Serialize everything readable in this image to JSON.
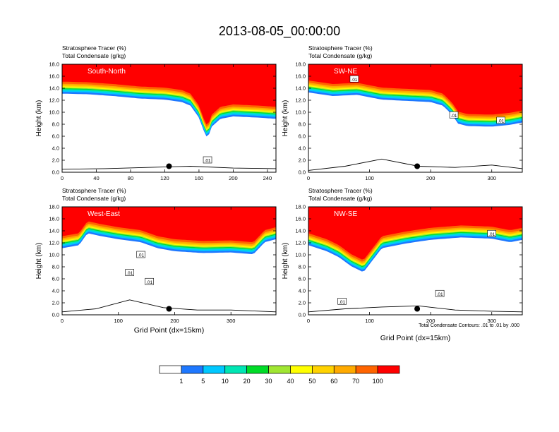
{
  "figure": {
    "title": "2013-08-05_00:00:00",
    "footnote": "Total Condensate Contours: .01 to .01 by .000"
  },
  "palette": [
    "#ffffff",
    "#1e78ff",
    "#00c8ff",
    "#00e6b4",
    "#00dc28",
    "#a0e632",
    "#ffff00",
    "#ffd200",
    "#ffaa00",
    "#ff6400",
    "#ff0000"
  ],
  "colorbar": {
    "labels": [
      "1",
      "5",
      "10",
      "20",
      "30",
      "40",
      "50",
      "60",
      "70",
      "100"
    ]
  },
  "chart_data": [
    {
      "type": "heatmap",
      "id": "sn",
      "label": "South-North",
      "field_label_1": "Stratosphere Tracer   (%)",
      "field_label_2": "Total Condensate   (g/kg)",
      "ylabel": "Height (km)",
      "xlabel": "",
      "xlim": [
        0,
        250
      ],
      "ylim": [
        0,
        18
      ],
      "xticks": [
        0,
        40,
        80,
        120,
        160,
        200,
        240
      ],
      "yticks": [
        "0.0",
        "2.0",
        "4.0",
        "6.0",
        "8.0",
        "10.0",
        "12.0",
        "14.0",
        "16.0",
        "18.0"
      ],
      "front_x": [
        0,
        30,
        60,
        90,
        120,
        140,
        150,
        160,
        165,
        170,
        175,
        185,
        200,
        230,
        250
      ],
      "front_y": [
        14.0,
        13.9,
        13.6,
        13.2,
        13.0,
        12.6,
        12.0,
        10.0,
        8.0,
        6.5,
        8.5,
        9.8,
        10.2,
        10.0,
        9.8
      ],
      "ground_x": [
        0,
        50,
        100,
        150,
        200,
        250
      ],
      "ground_y": [
        0.5,
        0.6,
        0.8,
        1.0,
        0.7,
        0.6
      ],
      "marker": [
        125,
        1.0
      ],
      "contour_labels": [
        {
          "text": ".01",
          "x": 170,
          "y": 2.0
        }
      ]
    },
    {
      "type": "heatmap",
      "id": "swne",
      "label": "SW-NE",
      "field_label_1": "Stratosphere Tracer   (%)",
      "field_label_2": "Total Condensate   (g/kg)",
      "ylabel": "Height (km)",
      "xlabel": "",
      "xlim": [
        0,
        350
      ],
      "ylim": [
        0,
        18
      ],
      "xticks": [
        0,
        100,
        200,
        300
      ],
      "yticks": [
        "0.0",
        "2.0",
        "4.0",
        "6.0",
        "8.0",
        "10.0",
        "12.0",
        "14.0",
        "16.0",
        "18.0"
      ],
      "front_x": [
        0,
        40,
        80,
        120,
        160,
        200,
        220,
        235,
        245,
        260,
        300,
        330,
        350
      ],
      "front_y": [
        14.2,
        13.6,
        13.8,
        13.0,
        12.8,
        12.6,
        12.0,
        10.5,
        9.0,
        8.6,
        8.5,
        8.8,
        9.2
      ],
      "ground_x": [
        0,
        60,
        120,
        180,
        240,
        300,
        350
      ],
      "ground_y": [
        0.3,
        1.0,
        2.2,
        1.0,
        0.8,
        1.2,
        0.6
      ],
      "marker": [
        178,
        1.0
      ],
      "contour_labels": [
        {
          "text": ".01",
          "x": 75,
          "y": 15.5
        },
        {
          "text": ".01",
          "x": 238,
          "y": 9.5
        },
        {
          "text": ".01",
          "x": 315,
          "y": 8.6
        }
      ]
    },
    {
      "type": "heatmap",
      "id": "we",
      "label": "West-East",
      "field_label_1": "Stratosphere Tracer   (%)",
      "field_label_2": "Total Condensate   (g/kg)",
      "ylabel": "Height (km)",
      "xlabel": "Grid Point (dx=15km)",
      "xlim": [
        0,
        380
      ],
      "ylim": [
        0,
        18
      ],
      "xticks": [
        0,
        100,
        200,
        300
      ],
      "yticks": [
        "0.0",
        "2.0",
        "4.0",
        "6.0",
        "8.0",
        "10.0",
        "12.0",
        "14.0",
        "16.0",
        "18.0"
      ],
      "front_x": [
        0,
        30,
        45,
        70,
        100,
        140,
        170,
        200,
        250,
        300,
        340,
        360,
        380
      ],
      "front_y": [
        12.0,
        12.5,
        14.5,
        14.0,
        13.5,
        13.0,
        12.0,
        11.5,
        11.2,
        11.3,
        11.0,
        13.0,
        13.5
      ],
      "ground_x": [
        0,
        60,
        120,
        180,
        240,
        300,
        380
      ],
      "ground_y": [
        0.5,
        1.0,
        2.5,
        1.2,
        0.8,
        0.8,
        0.5
      ],
      "marker": [
        190,
        1.0
      ],
      "contour_labels": [
        {
          "text": ".01",
          "x": 140,
          "y": 10.0
        },
        {
          "text": ".01",
          "x": 120,
          "y": 7.0
        },
        {
          "text": ".01",
          "x": 155,
          "y": 5.5
        }
      ]
    },
    {
      "type": "heatmap",
      "id": "nwse",
      "label": "NW-SE",
      "field_label_1": "Stratosphere Tracer   (%)",
      "field_label_2": "Total Condensate   (g/kg)",
      "ylabel": "Height (km)",
      "xlabel": "Grid Point (dx=15km)",
      "xlim": [
        0,
        350
      ],
      "ylim": [
        0,
        18
      ],
      "xticks": [
        0,
        100,
        200,
        300
      ],
      "yticks": [
        "0.0",
        "2.0",
        "4.0",
        "6.0",
        "8.0",
        "10.0",
        "12.0",
        "14.0",
        "16.0",
        "18.0"
      ],
      "front_x": [
        0,
        30,
        50,
        70,
        90,
        120,
        160,
        200,
        250,
        300,
        330,
        350
      ],
      "front_y": [
        12.5,
        11.5,
        10.5,
        9.0,
        8.0,
        12.0,
        12.8,
        13.4,
        13.8,
        13.6,
        13.0,
        13.4
      ],
      "ground_x": [
        0,
        60,
        120,
        180,
        240,
        300,
        350
      ],
      "ground_y": [
        0.5,
        1.0,
        1.3,
        1.5,
        0.8,
        0.6,
        0.5
      ],
      "marker": [
        178,
        1.0
      ],
      "contour_labels": [
        {
          "text": ".01",
          "x": 55,
          "y": 2.2
        },
        {
          "text": ".01",
          "x": 215,
          "y": 3.5
        },
        {
          "text": ".01",
          "x": 300,
          "y": 13.5
        }
      ]
    }
  ]
}
